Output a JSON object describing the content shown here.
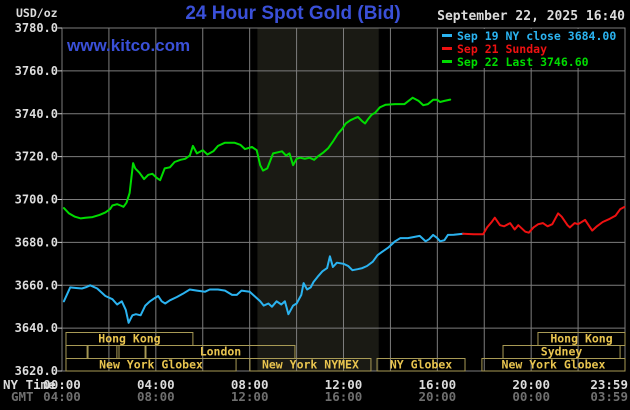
{
  "header": {
    "unit_label": "USD/oz",
    "title": "24 Hour Spot Gold (Bid)",
    "datetime": "September 22, 2025 16:40",
    "watermark": "www.kitco.com"
  },
  "legend": {
    "items": [
      {
        "label": "Sep 19 NY close 3684.00",
        "color": "#2bb3f0"
      },
      {
        "label": "Sep 21 Sunday",
        "color": "#ee1111"
      },
      {
        "label": "Sep 22 Last 3746.60",
        "color": "#00dc00"
      }
    ]
  },
  "axis": {
    "x_row1_label": "NY Time",
    "x_row2_label": "GMT",
    "x_row1": [
      "00:00",
      "04:00",
      "08:00",
      "12:00",
      "16:00",
      "20:00",
      "23:59"
    ],
    "x_row2": [
      "04:00",
      "08:00",
      "12:00",
      "16:00",
      "20:00",
      "00:00",
      "03:59"
    ],
    "y_ticks": [
      "3780.0",
      "3760.0",
      "3740.0",
      "3720.0",
      "3700.0",
      "3680.0",
      "3660.0",
      "3640.0",
      "3620.0"
    ]
  },
  "colors": {
    "title_blue": "#3a50d8",
    "grid": "#7d7d7d",
    "tick": "#cfcfcf",
    "shade": "#1a1a14",
    "session_border": "#a89a55",
    "session_text": "#e8c44f",
    "text_white": "#dcdcdc",
    "text_dim": "#6f6f6f",
    "background": "#000000"
  },
  "chart_data": {
    "type": "line",
    "title": "24 Hour Spot Gold (Bid)",
    "xlabel": "NY Time",
    "ylabel": "USD/oz",
    "x_range_hours": [
      0,
      24
    ],
    "ylim": [
      3620,
      3780
    ],
    "y_tick_step": 20,
    "x_tick_hours": [
      0,
      4,
      8,
      12,
      16,
      20,
      23.983
    ],
    "grid": true,
    "legend_position": "top-right",
    "shaded_region_hours": {
      "start": 8.33,
      "end": 13.5,
      "meaning": "New York NYMEX session"
    },
    "sessions": [
      {
        "row": 0,
        "start_h": 0.17,
        "end_h": 5.58,
        "label": "Hong Kong"
      },
      {
        "row": 0,
        "start_h": 20.29,
        "end_h": 24.0,
        "label": "Hong Kong"
      },
      {
        "row": 1,
        "start_h": 0.17,
        "end_h": 1.07,
        "label": ""
      },
      {
        "row": 1,
        "start_h": 1.11,
        "end_h": 2.34,
        "label": ""
      },
      {
        "row": 1,
        "start_h": 2.43,
        "end_h": 3.54,
        "label": ""
      },
      {
        "row": 1,
        "start_h": 3.58,
        "end_h": 9.93,
        "label": "London"
      },
      {
        "row": 1,
        "start_h": 18.8,
        "end_h": 23.79,
        "label": "Sydney"
      },
      {
        "row": 2,
        "start_h": 0.17,
        "end_h": 7.42,
        "label": "New York Globex"
      },
      {
        "row": 2,
        "start_h": 8.01,
        "end_h": 13.17,
        "label": "New York NYMEX"
      },
      {
        "row": 2,
        "start_h": 13.43,
        "end_h": 17.18,
        "label": "NY Globex"
      },
      {
        "row": 2,
        "start_h": 17.9,
        "end_h": 24.0,
        "label": "New York Globex"
      }
    ],
    "series": [
      {
        "name": "Sep 19 NY close 3684.00",
        "color": "#2bb3f0",
        "close_value": 3684.0,
        "points": [
          [
            0.08,
            3652.5
          ],
          [
            0.35,
            3659
          ],
          [
            0.6,
            3658.7
          ],
          [
            0.85,
            3658.5
          ],
          [
            1.05,
            3659.2
          ],
          [
            1.2,
            3660
          ],
          [
            1.5,
            3658.5
          ],
          [
            1.85,
            3655
          ],
          [
            2.15,
            3653.5
          ],
          [
            2.35,
            3651
          ],
          [
            2.55,
            3652.5
          ],
          [
            2.72,
            3648.5
          ],
          [
            2.84,
            3642.5
          ],
          [
            3.0,
            3646
          ],
          [
            3.15,
            3646.5
          ],
          [
            3.35,
            3646
          ],
          [
            3.55,
            3650.5
          ],
          [
            3.75,
            3652.5
          ],
          [
            3.95,
            3654
          ],
          [
            4.1,
            3655
          ],
          [
            4.25,
            3652.5
          ],
          [
            4.4,
            3651.5
          ],
          [
            4.6,
            3653
          ],
          [
            4.9,
            3654.5
          ],
          [
            5.15,
            3656
          ],
          [
            5.45,
            3658
          ],
          [
            5.75,
            3657.5
          ],
          [
            6.1,
            3657
          ],
          [
            6.3,
            3658
          ],
          [
            6.65,
            3658
          ],
          [
            6.95,
            3657.5
          ],
          [
            7.25,
            3655.5
          ],
          [
            7.45,
            3655.5
          ],
          [
            7.65,
            3657.5
          ],
          [
            8.0,
            3657
          ],
          [
            8.2,
            3655
          ],
          [
            8.45,
            3652.5
          ],
          [
            8.6,
            3650.5
          ],
          [
            8.8,
            3651.5
          ],
          [
            8.95,
            3650
          ],
          [
            9.15,
            3652.5
          ],
          [
            9.35,
            3651
          ],
          [
            9.5,
            3652.5
          ],
          [
            9.65,
            3646.5
          ],
          [
            9.85,
            3650.5
          ],
          [
            10.0,
            3651.5
          ],
          [
            10.2,
            3655.5
          ],
          [
            10.3,
            3661
          ],
          [
            10.45,
            3658
          ],
          [
            10.6,
            3659
          ],
          [
            10.72,
            3661.5
          ],
          [
            10.9,
            3664
          ],
          [
            11.1,
            3666.5
          ],
          [
            11.3,
            3668
          ],
          [
            11.42,
            3673.5
          ],
          [
            11.55,
            3668.5
          ],
          [
            11.72,
            3670.5
          ],
          [
            12.0,
            3670
          ],
          [
            12.2,
            3669
          ],
          [
            12.38,
            3667
          ],
          [
            12.6,
            3667.5
          ],
          [
            12.8,
            3668
          ],
          [
            13.0,
            3669
          ],
          [
            13.25,
            3671
          ],
          [
            13.45,
            3674
          ],
          [
            13.7,
            3676
          ],
          [
            13.9,
            3677.5
          ],
          [
            14.05,
            3679
          ],
          [
            14.2,
            3680.5
          ],
          [
            14.42,
            3682
          ],
          [
            14.75,
            3682
          ],
          [
            15.0,
            3682.5
          ],
          [
            15.25,
            3683
          ],
          [
            15.5,
            3680.5
          ],
          [
            15.65,
            3681.5
          ],
          [
            15.82,
            3683.5
          ],
          [
            16.0,
            3682
          ],
          [
            16.12,
            3680.5
          ],
          [
            16.3,
            3681
          ],
          [
            16.45,
            3683.5
          ],
          [
            16.7,
            3683.6
          ],
          [
            17.1,
            3684
          ]
        ]
      },
      {
        "name": "Sep 21 Sunday",
        "color": "#ee1111",
        "points": [
          [
            17.1,
            3684
          ],
          [
            17.55,
            3683.8
          ],
          [
            17.95,
            3683.8
          ],
          [
            18.12,
            3687
          ],
          [
            18.33,
            3689.7
          ],
          [
            18.45,
            3691.5
          ],
          [
            18.67,
            3688
          ],
          [
            18.85,
            3687.5
          ],
          [
            19.1,
            3689
          ],
          [
            19.3,
            3686
          ],
          [
            19.45,
            3688
          ],
          [
            19.75,
            3685
          ],
          [
            19.9,
            3684.5
          ],
          [
            20.1,
            3687
          ],
          [
            20.3,
            3688.5
          ],
          [
            20.5,
            3689
          ],
          [
            20.7,
            3687.5
          ],
          [
            20.9,
            3688.5
          ],
          [
            21.15,
            3693.5
          ],
          [
            21.3,
            3692
          ],
          [
            21.55,
            3688
          ],
          [
            21.65,
            3687
          ],
          [
            21.85,
            3689
          ],
          [
            22.0,
            3688.5
          ],
          [
            22.3,
            3690.5
          ],
          [
            22.6,
            3685.5
          ],
          [
            22.8,
            3687.5
          ],
          [
            23.05,
            3689.5
          ],
          [
            23.35,
            3691
          ],
          [
            23.6,
            3692.5
          ],
          [
            23.8,
            3695.5
          ],
          [
            23.97,
            3696.5
          ]
        ]
      },
      {
        "name": "Sep 22 Last 3746.60",
        "color": "#00dc00",
        "last_value": 3746.6,
        "points": [
          [
            0.08,
            3696
          ],
          [
            0.3,
            3693.5
          ],
          [
            0.55,
            3692
          ],
          [
            0.8,
            3691.2
          ],
          [
            1.0,
            3691.5
          ],
          [
            1.3,
            3691.8
          ],
          [
            1.6,
            3692.8
          ],
          [
            1.85,
            3694
          ],
          [
            2.05,
            3695.5
          ],
          [
            2.15,
            3697.2
          ],
          [
            2.35,
            3697.8
          ],
          [
            2.5,
            3697.2
          ],
          [
            2.62,
            3696.6
          ],
          [
            2.75,
            3698.5
          ],
          [
            2.88,
            3703
          ],
          [
            3.03,
            3717
          ],
          [
            3.12,
            3714.5
          ],
          [
            3.3,
            3712.5
          ],
          [
            3.5,
            3709.5
          ],
          [
            3.68,
            3711.5
          ],
          [
            3.85,
            3712
          ],
          [
            4.05,
            3710
          ],
          [
            4.18,
            3709
          ],
          [
            4.38,
            3714.5
          ],
          [
            4.6,
            3715
          ],
          [
            4.8,
            3717.5
          ],
          [
            5.05,
            3718.5
          ],
          [
            5.25,
            3719
          ],
          [
            5.45,
            3720.5
          ],
          [
            5.58,
            3725
          ],
          [
            5.75,
            3721.5
          ],
          [
            6.0,
            3723
          ],
          [
            6.2,
            3721
          ],
          [
            6.45,
            3722.5
          ],
          [
            6.65,
            3725
          ],
          [
            6.95,
            3726.5
          ],
          [
            7.35,
            3726.5
          ],
          [
            7.6,
            3725.5
          ],
          [
            7.8,
            3723.5
          ],
          [
            8.1,
            3724.5
          ],
          [
            8.3,
            3723
          ],
          [
            8.45,
            3716
          ],
          [
            8.57,
            3713.5
          ],
          [
            8.75,
            3714.5
          ],
          [
            9.0,
            3721.5
          ],
          [
            9.2,
            3722
          ],
          [
            9.38,
            3722.5
          ],
          [
            9.55,
            3720.5
          ],
          [
            9.7,
            3721.5
          ],
          [
            9.85,
            3716
          ],
          [
            10.0,
            3719
          ],
          [
            10.15,
            3719.5
          ],
          [
            10.35,
            3719
          ],
          [
            10.55,
            3719.5
          ],
          [
            10.75,
            3718.5
          ],
          [
            10.9,
            3720
          ],
          [
            11.15,
            3722
          ],
          [
            11.35,
            3724
          ],
          [
            11.55,
            3727
          ],
          [
            11.75,
            3730.5
          ],
          [
            11.95,
            3733
          ],
          [
            12.1,
            3735.5
          ],
          [
            12.3,
            3737
          ],
          [
            12.5,
            3738
          ],
          [
            12.62,
            3738.5
          ],
          [
            12.8,
            3736.5
          ],
          [
            12.92,
            3735.5
          ],
          [
            13.05,
            3737.5
          ],
          [
            13.2,
            3739.5
          ],
          [
            13.35,
            3740.5
          ],
          [
            13.55,
            3743
          ],
          [
            13.8,
            3744.2
          ],
          [
            14.2,
            3744.5
          ],
          [
            14.6,
            3744.5
          ],
          [
            14.95,
            3747.5
          ],
          [
            15.2,
            3746
          ],
          [
            15.4,
            3744
          ],
          [
            15.6,
            3744.5
          ],
          [
            15.82,
            3746.5
          ],
          [
            16.0,
            3746.5
          ],
          [
            16.12,
            3745.5
          ],
          [
            16.3,
            3746
          ],
          [
            16.55,
            3746.6
          ]
        ]
      }
    ]
  }
}
